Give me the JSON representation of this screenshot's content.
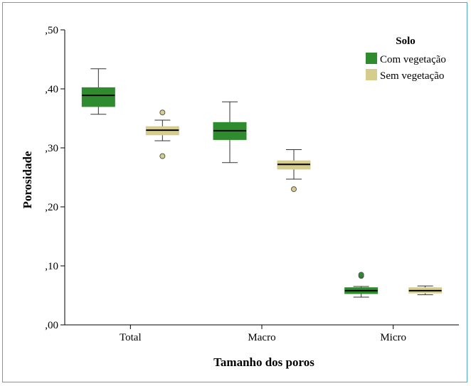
{
  "chart_data": {
    "type": "box",
    "xlabel": "Tamanho dos poros",
    "ylabel": "Porosidade",
    "ylim": [
      0,
      0.5
    ],
    "yticks": [
      0,
      0.1,
      0.2,
      0.3,
      0.4,
      0.5
    ],
    "ytick_labels": [
      ",00",
      ",10",
      ",20",
      ",30",
      ",40",
      ",50"
    ],
    "categories": [
      "Total",
      "Macro",
      "Micro"
    ],
    "legend": {
      "title": "Solo",
      "position": "top-right"
    },
    "grid": false,
    "series": [
      {
        "name": "Com vegetação",
        "color": "#2e8b2e",
        "boxes": [
          {
            "min": 0.357,
            "q1": 0.37,
            "median": 0.389,
            "q3": 0.402,
            "max": 0.434,
            "outliers": []
          },
          {
            "min": 0.275,
            "q1": 0.314,
            "median": 0.329,
            "q3": 0.343,
            "max": 0.378,
            "outliers": []
          },
          {
            "min": 0.047,
            "q1": 0.053,
            "median": 0.058,
            "q3": 0.063,
            "max": 0.065,
            "outliers": [
              0.083,
              0.085
            ]
          }
        ]
      },
      {
        "name": "Sem vegetação",
        "color": "#d6cc8e",
        "boxes": [
          {
            "min": 0.312,
            "q1": 0.322,
            "median": 0.33,
            "q3": 0.336,
            "max": 0.347,
            "outliers": [
              0.36,
              0.286
            ]
          },
          {
            "min": 0.247,
            "q1": 0.264,
            "median": 0.272,
            "q3": 0.278,
            "max": 0.297,
            "outliers": [
              0.23
            ]
          },
          {
            "min": 0.051,
            "q1": 0.054,
            "median": 0.058,
            "q3": 0.063,
            "max": 0.066,
            "outliers": []
          }
        ]
      }
    ]
  }
}
